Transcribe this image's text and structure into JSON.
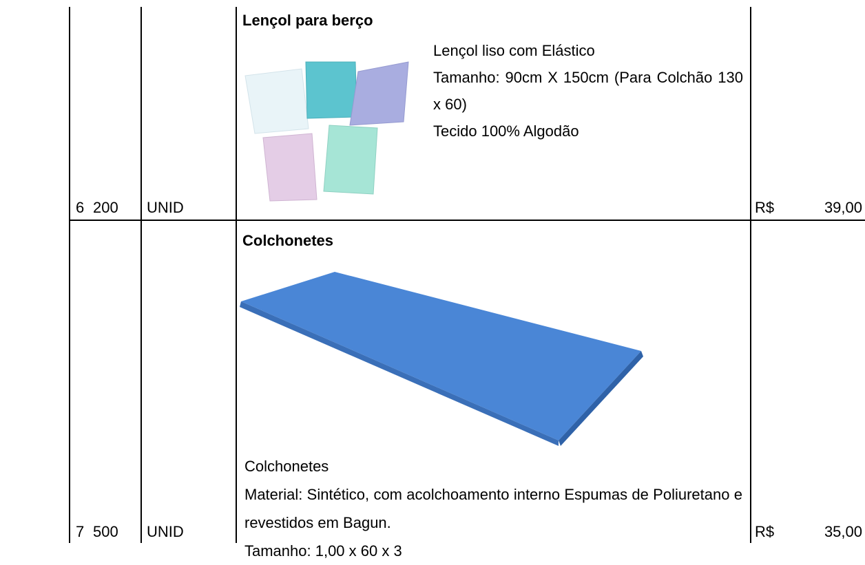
{
  "table": {
    "rows": [
      {
        "item": "6",
        "quantity": "200",
        "unit": "UNID",
        "title": "Lençol para berço",
        "description": [
          "Lençol liso com Elástico",
          "Tamanho: 90cm X 150cm (Para Colchão 130 x 60)",
          "Tecido 100% Algodão"
        ],
        "currency": "R$",
        "price": "39,00"
      },
      {
        "item": "7",
        "quantity": "500",
        "unit": "UNID",
        "title": "Colchonetes",
        "description": [
          "Colchonetes",
          "Material: Sintético, com acolchoamento interno Espumas de Poliuretano e revestidos em Bagun.",
          "Tamanho: 1,00 x 60 x 3"
        ],
        "currency": "R$",
        "price": "35,00"
      }
    ]
  }
}
